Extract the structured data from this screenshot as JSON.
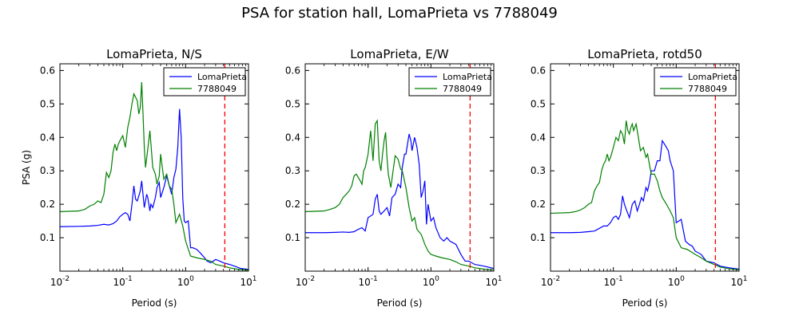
{
  "figure": {
    "title": "PSA for station hall, LomaPrieta vs 7788049"
  },
  "colors": {
    "lomaprieta": "#0000ff",
    "sim": "#008000",
    "marker": "#ff0000"
  },
  "chart_data": [
    {
      "type": "line",
      "title": "LomaPrieta, N/S",
      "xlabel": "Period (s)",
      "ylabel": "PSA (g)",
      "xscale": "log",
      "xlim": [
        0.01,
        10
      ],
      "ylim": [
        0,
        0.62
      ],
      "yticks": [
        0.1,
        0.2,
        0.3,
        0.4,
        0.5,
        0.6
      ],
      "ytick_labels": [
        "0.1",
        "0.2",
        "0.3",
        "0.4",
        "0.5",
        "0.6"
      ],
      "xticks": [
        0.01,
        0.1,
        1,
        10
      ],
      "xtick_labels": [
        [
          "10",
          "-2"
        ],
        [
          "10",
          "-1"
        ],
        [
          "10",
          "0"
        ],
        [
          "10",
          "1"
        ]
      ],
      "legend": "top-right",
      "vline": 4.2,
      "series": [
        {
          "name": "LomaPrieta",
          "x": [
            0.01,
            0.02,
            0.03,
            0.04,
            0.05,
            0.06,
            0.07,
            0.08,
            0.09,
            0.1,
            0.11,
            0.12,
            0.13,
            0.14,
            0.15,
            0.16,
            0.17,
            0.18,
            0.19,
            0.2,
            0.22,
            0.24,
            0.25,
            0.27,
            0.28,
            0.3,
            0.33,
            0.35,
            0.38,
            0.4,
            0.45,
            0.5,
            0.55,
            0.6,
            0.65,
            0.7,
            0.75,
            0.8,
            0.85,
            0.9,
            0.95,
            1.0,
            1.1,
            1.2,
            1.3,
            1.5,
            1.7,
            2.0,
            2.2,
            2.5,
            3.0,
            3.5,
            4.0,
            5.0,
            6.0,
            7.5,
            8.5,
            10.0
          ],
          "y": [
            0.133,
            0.134,
            0.135,
            0.137,
            0.14,
            0.138,
            0.142,
            0.15,
            0.163,
            0.17,
            0.175,
            0.17,
            0.15,
            0.2,
            0.255,
            0.215,
            0.21,
            0.225,
            0.24,
            0.27,
            0.19,
            0.23,
            0.22,
            0.18,
            0.2,
            0.19,
            0.22,
            0.25,
            0.265,
            0.22,
            0.25,
            0.285,
            0.255,
            0.23,
            0.28,
            0.305,
            0.37,
            0.485,
            0.4,
            0.22,
            0.15,
            0.145,
            0.15,
            0.07,
            0.07,
            0.065,
            0.055,
            0.04,
            0.03,
            0.025,
            0.035,
            0.03,
            0.025,
            0.02,
            0.015,
            0.008,
            0.007,
            0.005
          ]
        },
        {
          "name": "7788049",
          "x": [
            0.01,
            0.02,
            0.025,
            0.03,
            0.035,
            0.04,
            0.045,
            0.05,
            0.055,
            0.06,
            0.065,
            0.07,
            0.075,
            0.08,
            0.085,
            0.09,
            0.1,
            0.11,
            0.12,
            0.13,
            0.14,
            0.15,
            0.16,
            0.17,
            0.18,
            0.19,
            0.2,
            0.21,
            0.22,
            0.23,
            0.25,
            0.27,
            0.3,
            0.33,
            0.35,
            0.38,
            0.4,
            0.45,
            0.5,
            0.55,
            0.6,
            0.65,
            0.7,
            0.8,
            0.9,
            1.0,
            1.2,
            1.5,
            2.0,
            2.5,
            3.0,
            4.0,
            5.0,
            7.0,
            10.0
          ],
          "y": [
            0.178,
            0.18,
            0.185,
            0.195,
            0.2,
            0.21,
            0.205,
            0.23,
            0.295,
            0.28,
            0.3,
            0.355,
            0.38,
            0.36,
            0.38,
            0.39,
            0.405,
            0.37,
            0.43,
            0.46,
            0.5,
            0.53,
            0.52,
            0.51,
            0.47,
            0.49,
            0.565,
            0.47,
            0.37,
            0.31,
            0.365,
            0.42,
            0.31,
            0.29,
            0.26,
            0.285,
            0.35,
            0.275,
            0.29,
            0.255,
            0.245,
            0.2,
            0.145,
            0.17,
            0.135,
            0.09,
            0.045,
            0.04,
            0.035,
            0.03,
            0.02,
            0.015,
            0.01,
            0.005,
            0.003
          ]
        }
      ]
    },
    {
      "type": "line",
      "title": "LomaPrieta, E/W",
      "xlabel": "Period (s)",
      "ylabel": "",
      "xscale": "log",
      "xlim": [
        0.01,
        10
      ],
      "ylim": [
        0,
        0.62
      ],
      "yticks": [
        0.1,
        0.2,
        0.3,
        0.4,
        0.5,
        0.6
      ],
      "ytick_labels": [
        "0.1",
        "0.2",
        "0.3",
        "0.4",
        "0.5",
        "0.6"
      ],
      "xticks": [
        0.01,
        0.1,
        1,
        10
      ],
      "xtick_labels": [
        [
          "10",
          "-2"
        ],
        [
          "10",
          "-1"
        ],
        [
          "10",
          "0"
        ],
        [
          "10",
          "1"
        ]
      ],
      "legend": "top-right",
      "vline": 4.2,
      "series": [
        {
          "name": "LomaPrieta",
          "x": [
            0.01,
            0.02,
            0.03,
            0.04,
            0.05,
            0.06,
            0.065,
            0.07,
            0.08,
            0.09,
            0.1,
            0.11,
            0.12,
            0.13,
            0.14,
            0.15,
            0.16,
            0.18,
            0.2,
            0.22,
            0.24,
            0.27,
            0.3,
            0.33,
            0.35,
            0.38,
            0.4,
            0.45,
            0.48,
            0.5,
            0.55,
            0.6,
            0.65,
            0.7,
            0.75,
            0.8,
            0.85,
            0.9,
            1.0,
            1.1,
            1.2,
            1.4,
            1.6,
            1.8,
            2.0,
            2.5,
            3.0,
            3.5,
            4.0,
            5.0,
            7.0,
            10.0
          ],
          "y": [
            0.115,
            0.115,
            0.116,
            0.117,
            0.116,
            0.118,
            0.122,
            0.125,
            0.13,
            0.12,
            0.16,
            0.165,
            0.17,
            0.215,
            0.23,
            0.18,
            0.17,
            0.18,
            0.19,
            0.165,
            0.22,
            0.23,
            0.26,
            0.25,
            0.31,
            0.35,
            0.35,
            0.41,
            0.39,
            0.36,
            0.4,
            0.37,
            0.32,
            0.22,
            0.24,
            0.27,
            0.14,
            0.2,
            0.15,
            0.16,
            0.13,
            0.1,
            0.09,
            0.1,
            0.09,
            0.08,
            0.05,
            0.03,
            0.03,
            0.02,
            0.015,
            0.008
          ]
        },
        {
          "name": "7788049",
          "x": [
            0.01,
            0.02,
            0.025,
            0.03,
            0.035,
            0.04,
            0.045,
            0.05,
            0.055,
            0.06,
            0.065,
            0.07,
            0.075,
            0.08,
            0.085,
            0.09,
            0.1,
            0.11,
            0.12,
            0.13,
            0.14,
            0.15,
            0.16,
            0.17,
            0.18,
            0.19,
            0.2,
            0.21,
            0.22,
            0.23,
            0.25,
            0.27,
            0.3,
            0.33,
            0.35,
            0.4,
            0.45,
            0.5,
            0.55,
            0.6,
            0.7,
            0.8,
            0.9,
            1.0,
            1.2,
            1.5,
            2.0,
            2.5,
            3.0,
            4.0,
            5.0,
            7.0,
            10.0
          ],
          "y": [
            0.178,
            0.18,
            0.185,
            0.19,
            0.2,
            0.22,
            0.23,
            0.24,
            0.255,
            0.285,
            0.29,
            0.28,
            0.27,
            0.26,
            0.3,
            0.31,
            0.35,
            0.42,
            0.33,
            0.44,
            0.45,
            0.33,
            0.3,
            0.35,
            0.39,
            0.415,
            0.34,
            0.29,
            0.27,
            0.25,
            0.3,
            0.345,
            0.335,
            0.305,
            0.3,
            0.25,
            0.19,
            0.15,
            0.16,
            0.125,
            0.11,
            0.08,
            0.06,
            0.05,
            0.045,
            0.04,
            0.035,
            0.028,
            0.02,
            0.015,
            0.01,
            0.006,
            0.004
          ]
        }
      ]
    },
    {
      "type": "line",
      "title": "LomaPrieta, rotd50",
      "xlabel": "Period (s)",
      "ylabel": "",
      "xscale": "log",
      "xlim": [
        0.01,
        10
      ],
      "ylim": [
        0,
        0.62
      ],
      "yticks": [
        0.1,
        0.2,
        0.3,
        0.4,
        0.5,
        0.6
      ],
      "ytick_labels": [
        "0.1",
        "0.2",
        "0.3",
        "0.4",
        "0.5",
        "0.6"
      ],
      "xticks": [
        0.01,
        0.1,
        1,
        10
      ],
      "xtick_labels": [
        [
          "10",
          "-2"
        ],
        [
          "10",
          "-1"
        ],
        [
          "10",
          "0"
        ],
        [
          "10",
          "1"
        ]
      ],
      "legend": "top-right",
      "vline": 4.2,
      "series": [
        {
          "name": "LomaPrieta",
          "x": [
            0.01,
            0.02,
            0.03,
            0.04,
            0.05,
            0.06,
            0.07,
            0.08,
            0.09,
            0.1,
            0.11,
            0.12,
            0.13,
            0.14,
            0.15,
            0.16,
            0.18,
            0.2,
            0.22,
            0.24,
            0.26,
            0.28,
            0.3,
            0.33,
            0.35,
            0.38,
            0.4,
            0.45,
            0.5,
            0.55,
            0.6,
            0.65,
            0.7,
            0.75,
            0.8,
            0.9,
            1.0,
            1.1,
            1.2,
            1.4,
            1.6,
            1.8,
            2.0,
            2.5,
            3.0,
            4.0,
            5.0,
            7.0,
            10.0
          ],
          "y": [
            0.115,
            0.115,
            0.116,
            0.118,
            0.12,
            0.128,
            0.135,
            0.135,
            0.145,
            0.16,
            0.165,
            0.155,
            0.17,
            0.225,
            0.2,
            0.185,
            0.16,
            0.2,
            0.21,
            0.18,
            0.2,
            0.22,
            0.21,
            0.25,
            0.24,
            0.27,
            0.3,
            0.3,
            0.33,
            0.33,
            0.39,
            0.38,
            0.37,
            0.36,
            0.33,
            0.3,
            0.145,
            0.15,
            0.155,
            0.09,
            0.08,
            0.075,
            0.06,
            0.05,
            0.03,
            0.025,
            0.015,
            0.01,
            0.006
          ]
        },
        {
          "name": "7788049",
          "x": [
            0.01,
            0.02,
            0.025,
            0.03,
            0.035,
            0.04,
            0.045,
            0.05,
            0.055,
            0.06,
            0.065,
            0.07,
            0.075,
            0.08,
            0.085,
            0.09,
            0.1,
            0.11,
            0.12,
            0.13,
            0.14,
            0.15,
            0.16,
            0.17,
            0.18,
            0.19,
            0.2,
            0.21,
            0.22,
            0.23,
            0.25,
            0.27,
            0.3,
            0.33,
            0.35,
            0.4,
            0.45,
            0.5,
            0.55,
            0.6,
            0.7,
            0.8,
            0.9,
            1.0,
            1.2,
            1.5,
            2.0,
            2.5,
            3.0,
            4.0,
            5.0,
            7.0,
            10.0
          ],
          "y": [
            0.173,
            0.175,
            0.178,
            0.183,
            0.19,
            0.2,
            0.205,
            0.24,
            0.255,
            0.265,
            0.3,
            0.32,
            0.33,
            0.35,
            0.33,
            0.34,
            0.37,
            0.4,
            0.39,
            0.42,
            0.41,
            0.38,
            0.45,
            0.42,
            0.41,
            0.43,
            0.44,
            0.42,
            0.43,
            0.44,
            0.4,
            0.36,
            0.37,
            0.34,
            0.35,
            0.29,
            0.29,
            0.27,
            0.24,
            0.22,
            0.2,
            0.18,
            0.16,
            0.1,
            0.07,
            0.065,
            0.05,
            0.04,
            0.03,
            0.02,
            0.012,
            0.007,
            0.004
          ]
        }
      ]
    }
  ]
}
